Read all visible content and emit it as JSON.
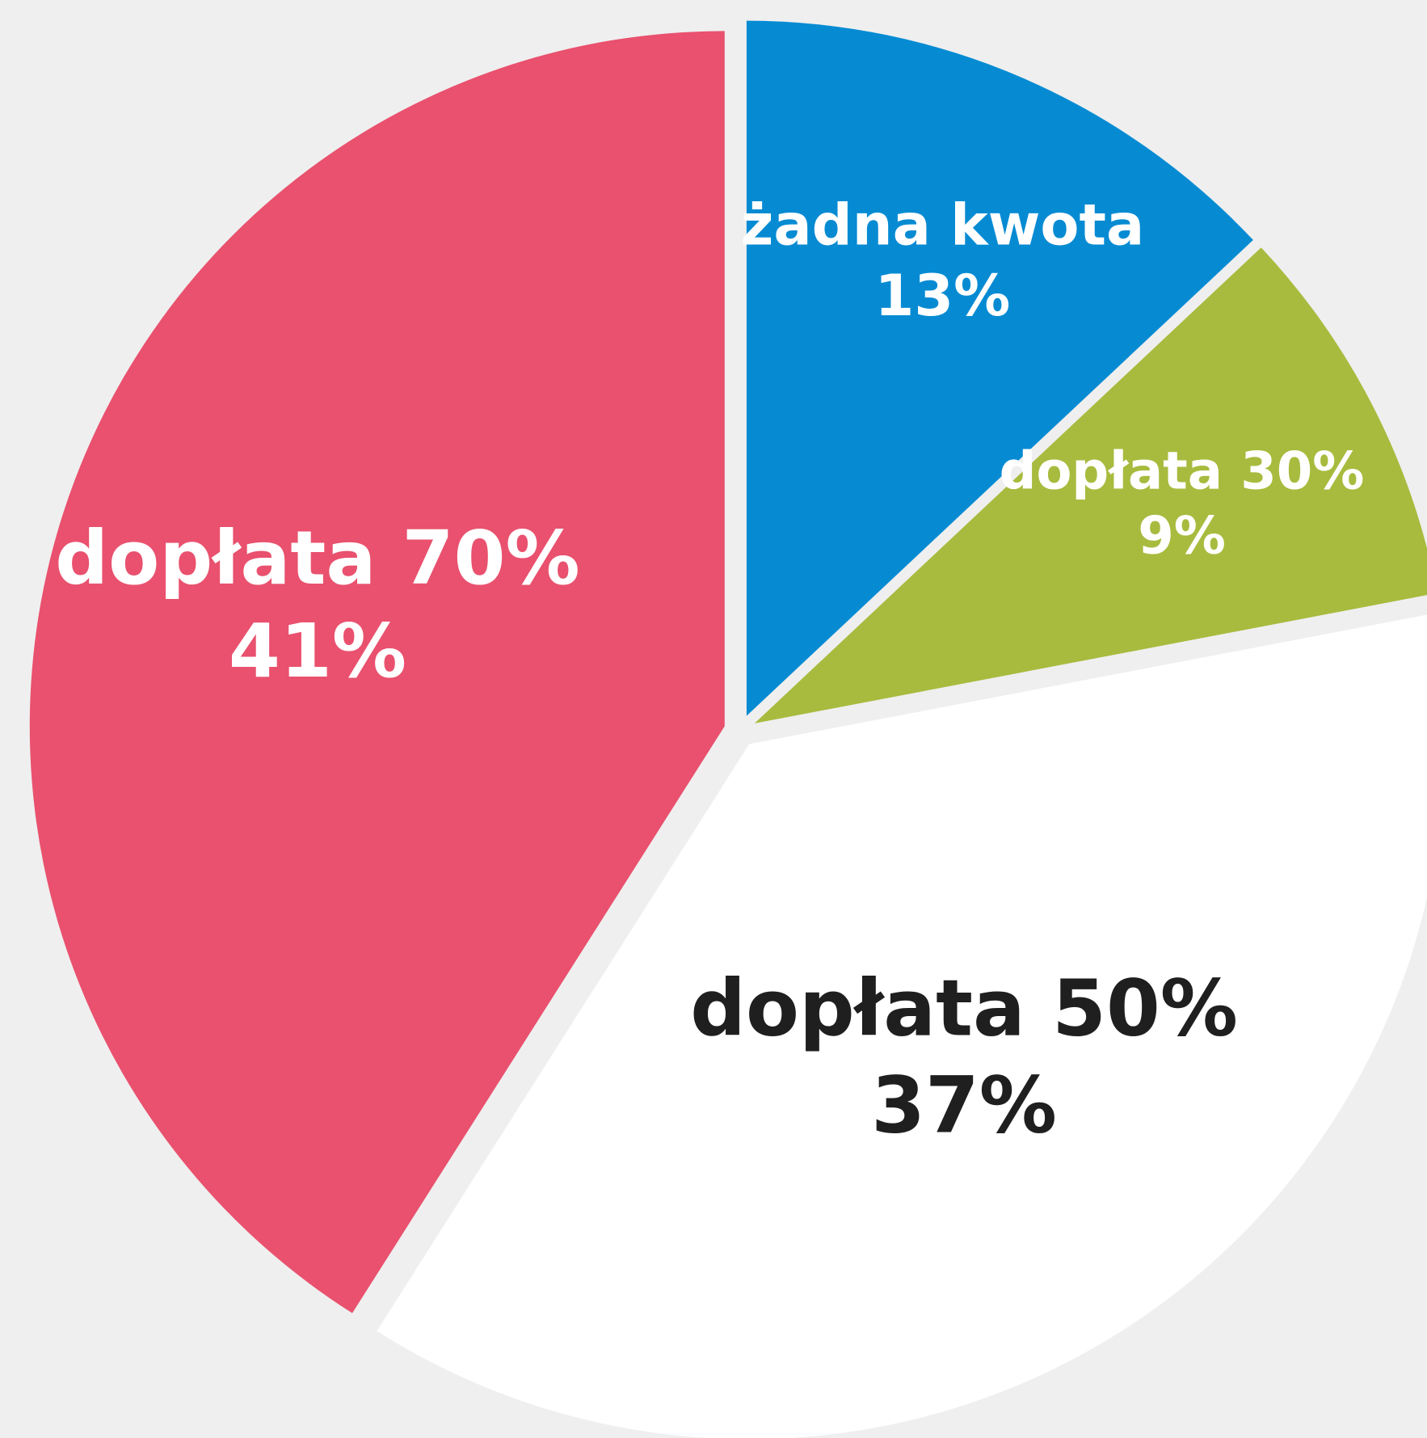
{
  "chart_data": {
    "type": "pie",
    "categories": [
      "żadna kwota",
      "dopłata 30%",
      "dopłata 50%",
      "dopłata 70%"
    ],
    "values": [
      13,
      9,
      37,
      41
    ],
    "value_labels": [
      "13%",
      "9%",
      "37%",
      "41%"
    ],
    "colors": [
      "#068bd3",
      "#a8bb3e",
      "#ffffff",
      "#e9516e"
    ],
    "label_colors": [
      "#ffffff",
      "#ffffff",
      "#1f1f1f",
      "#ffffff"
    ]
  }
}
